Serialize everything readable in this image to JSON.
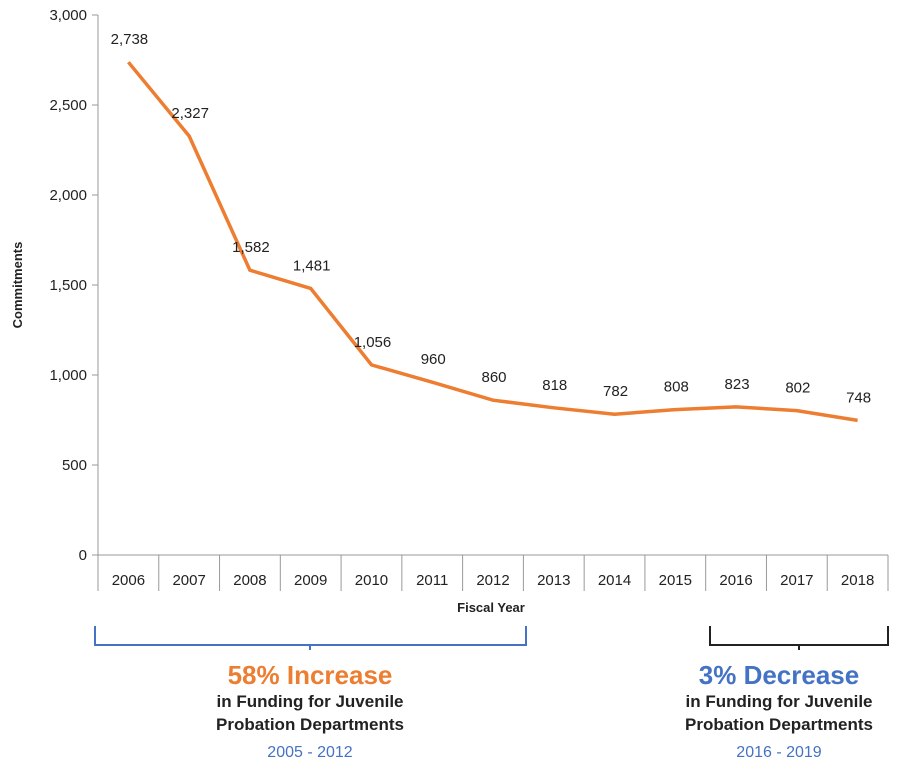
{
  "chart_data": {
    "type": "line",
    "title": "",
    "xlabel": "Fiscal Year",
    "ylabel": "Commitments",
    "categories": [
      "2006",
      "2007",
      "2008",
      "2009",
      "2010",
      "2011",
      "2012",
      "2013",
      "2014",
      "2015",
      "2016",
      "2017",
      "2018"
    ],
    "series": [
      {
        "values": [
          2738,
          2327,
          1582,
          1481,
          1056,
          960,
          860,
          818,
          782,
          808,
          823,
          802,
          748
        ]
      }
    ],
    "data_labels": [
      "2,738",
      "2,327",
      "1,582",
      "1,481",
      "1,056",
      "960",
      "860",
      "818",
      "782",
      "808",
      "823",
      "802",
      "748"
    ],
    "ylim": [
      0,
      3000
    ],
    "y_ticks": [
      0,
      500,
      1000,
      1500,
      2000,
      2500,
      3000
    ],
    "y_tick_labels": [
      "0",
      "500",
      "1,000",
      "1,500",
      "2,000",
      "2,500",
      "3,000"
    ],
    "grid": false,
    "line_color": "#ed7d31"
  },
  "annotations": {
    "left": {
      "headline": "58% Increase",
      "line1": "in Funding for Juvenile",
      "line2": "Probation Departments",
      "years": "2005 - 2012",
      "headline_color": "#ed7d31",
      "bracket_color": "#4472c4",
      "years_color": "#4472c4"
    },
    "right": {
      "headline": "3% Decrease",
      "line1": "in Funding for Juvenile",
      "line2": "Probation Departments",
      "years": "2016 - 2019",
      "headline_color": "#4472c4",
      "bracket_color": "#222222",
      "years_color": "#4472c4"
    }
  }
}
